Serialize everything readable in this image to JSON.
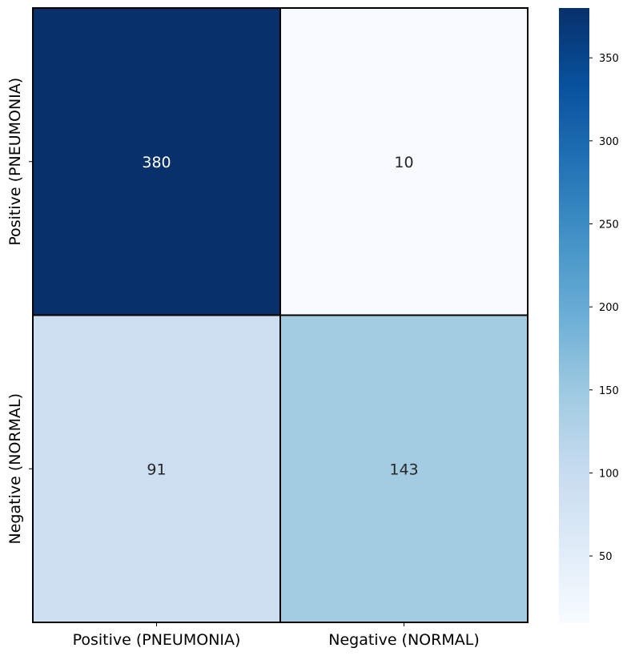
{
  "chart_data": {
    "type": "heatmap",
    "title": "",
    "xlabel": "",
    "ylabel": "",
    "x_categories": [
      "Positive (PNEUMONIA)",
      "Negative (NORMAL)"
    ],
    "y_categories": [
      "Positive (PNEUMONIA)",
      "Negative (NORMAL)"
    ],
    "values": [
      [
        380,
        10
      ],
      [
        91,
        143
      ]
    ],
    "colormap": "Blues",
    "colorbar": {
      "range": [
        10,
        380
      ],
      "ticks": [
        50,
        100,
        150,
        200,
        250,
        300,
        350
      ]
    },
    "cell_border_color": "#000000"
  }
}
